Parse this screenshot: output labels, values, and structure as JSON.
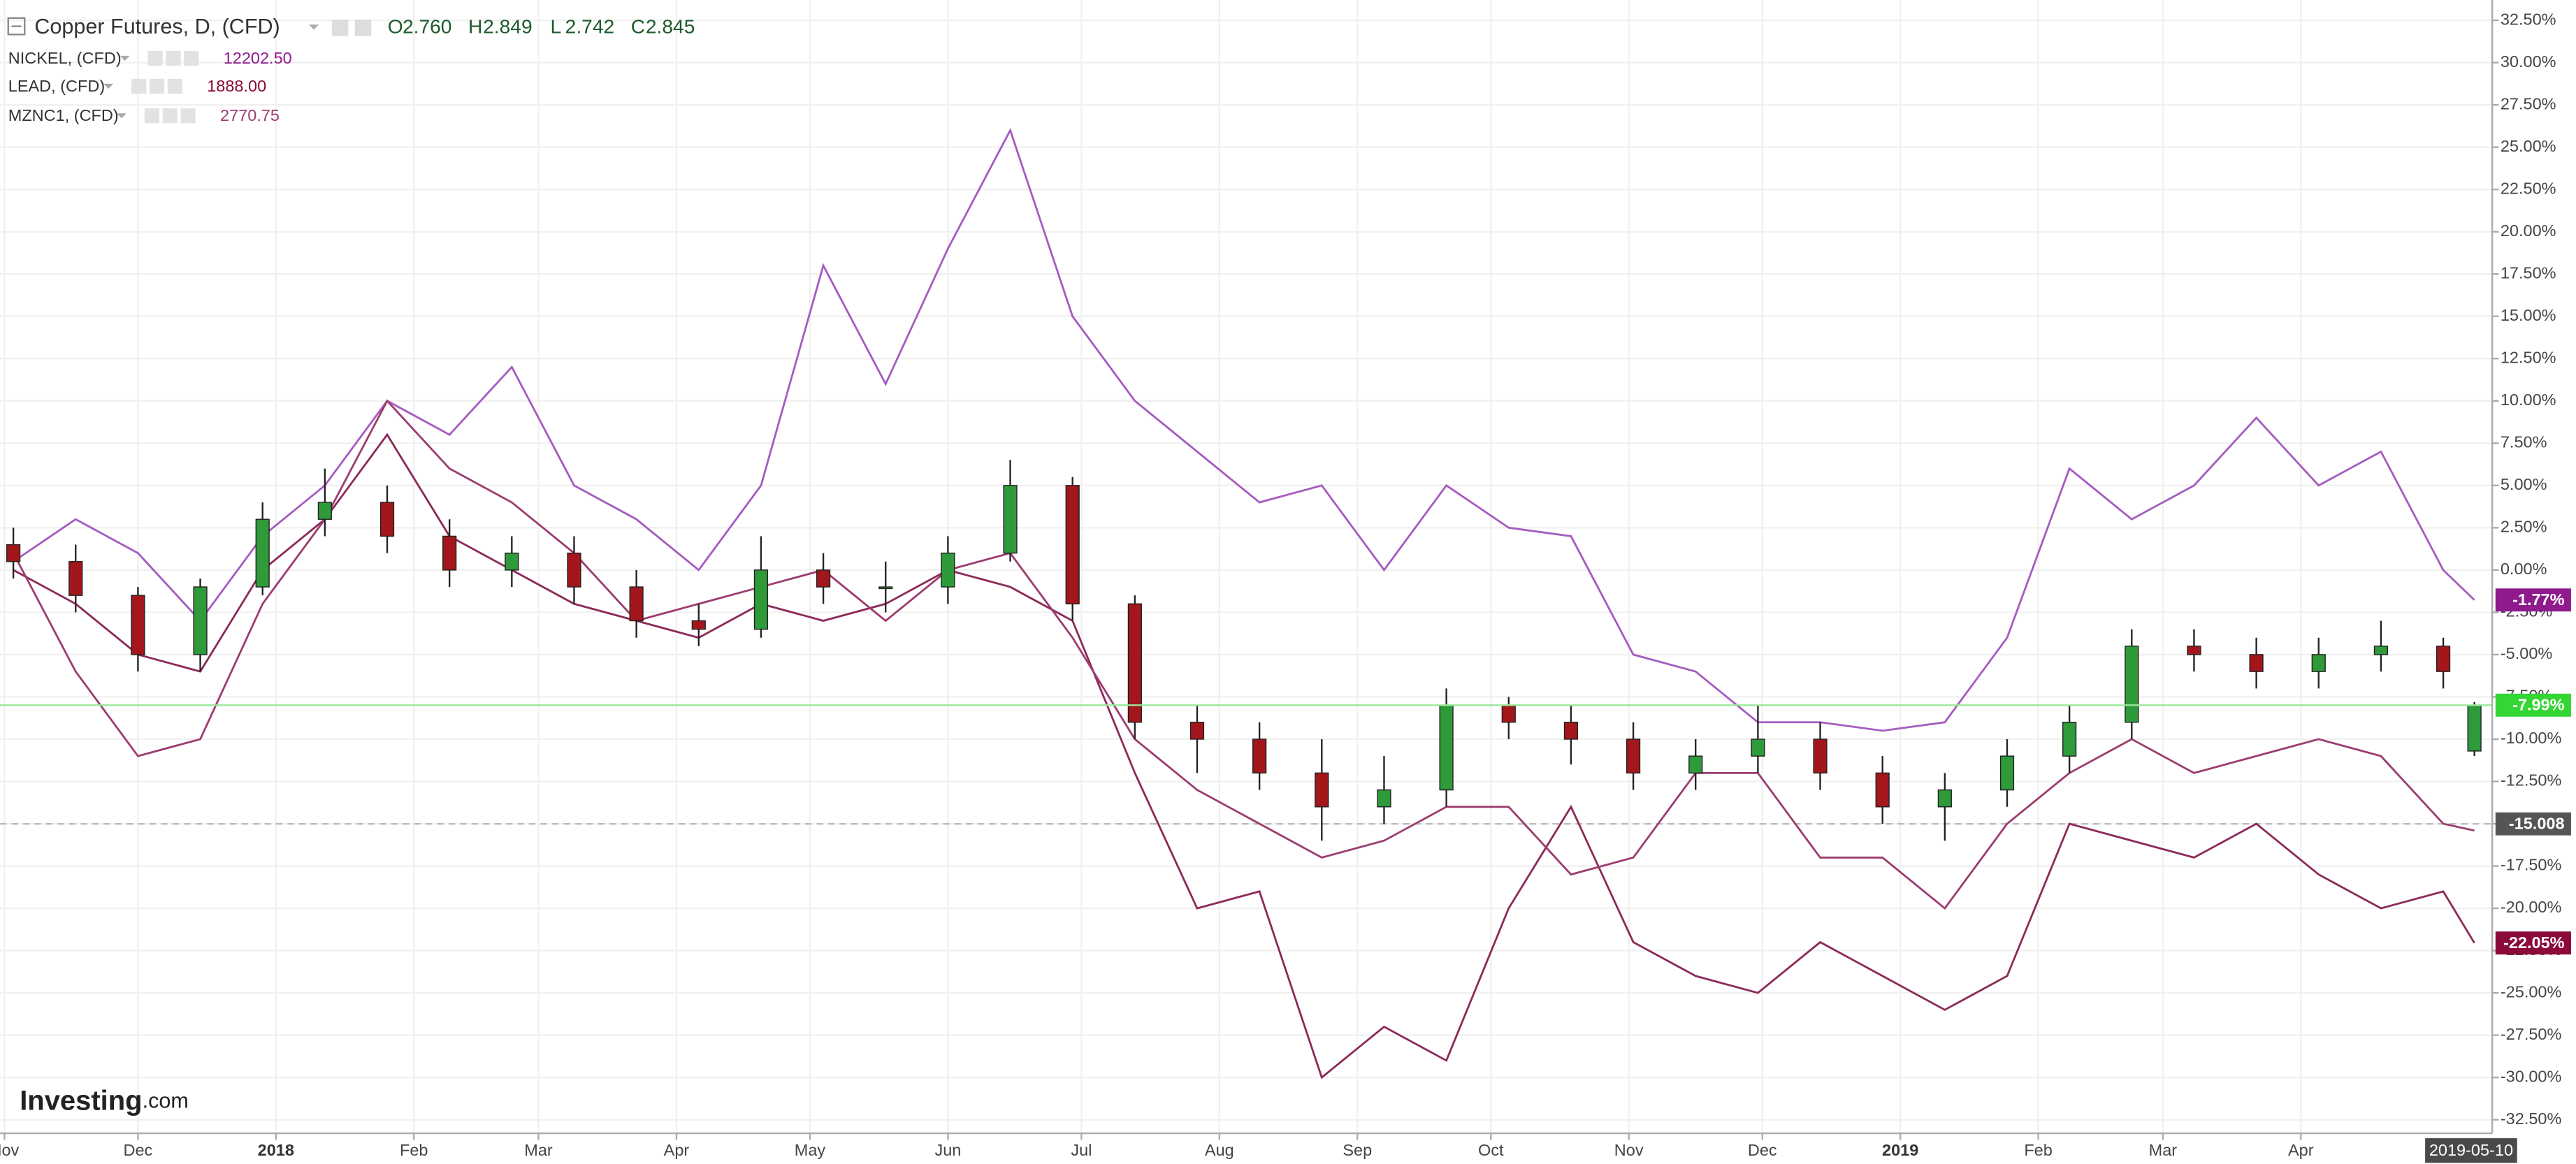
{
  "chart_data": {
    "type": "candlestick",
    "title": "Copper Futures, D, (CFD)",
    "ohlc_header": [
      {
        "key": "O",
        "value": "2.760"
      },
      {
        "key": "H",
        "value": "2.849"
      },
      {
        "key": "L",
        "value": "2.742"
      },
      {
        "key": "C",
        "value": "2.845"
      }
    ],
    "x": [
      "2017-11-03",
      "2017-11-17",
      "2017-12-01",
      "2017-12-15",
      "2017-12-29",
      "2018-01-12",
      "2018-01-26",
      "2018-02-09",
      "2018-02-23",
      "2018-03-09",
      "2018-03-23",
      "2018-04-06",
      "2018-04-20",
      "2018-05-04",
      "2018-05-18",
      "2018-06-01",
      "2018-06-15",
      "2018-06-29",
      "2018-07-13",
      "2018-07-27",
      "2018-08-10",
      "2018-08-24",
      "2018-09-07",
      "2018-09-21",
      "2018-10-05",
      "2018-10-19",
      "2018-11-02",
      "2018-11-16",
      "2018-11-30",
      "2018-12-14",
      "2018-12-28",
      "2019-01-11",
      "2019-01-25",
      "2019-02-08",
      "2019-02-22",
      "2019-03-08",
      "2019-03-22",
      "2019-04-05",
      "2019-04-19",
      "2019-05-03",
      "2019-05-10"
    ],
    "open": [
      1.5,
      0.5,
      -1.5,
      -5,
      -1,
      3,
      4,
      2,
      0,
      1,
      -1,
      -3,
      -3.5,
      0,
      -1,
      -1,
      1,
      5,
      -2,
      -9,
      -10,
      -12,
      -14,
      -13,
      -8,
      -9,
      -10,
      -12,
      -11,
      -10,
      -12,
      -14,
      -13,
      -11,
      -9,
      -4.5,
      -5,
      -6,
      -5,
      -4.5,
      -10.7
    ],
    "high": [
      2.5,
      1.5,
      -1,
      -0.5,
      4,
      6,
      5,
      3,
      2,
      2,
      0,
      -2,
      2,
      1,
      0.5,
      2,
      6.5,
      5.5,
      -1.5,
      -8,
      -9,
      -10,
      -11,
      -7,
      -7.5,
      -8,
      -9,
      -10,
      -8,
      -9,
      -11,
      -12,
      -10,
      -8,
      -3.5,
      -3.5,
      -4,
      -4,
      -3,
      -4,
      -7.8
    ],
    "low": [
      -0.5,
      -2.5,
      -6,
      -6,
      -1.5,
      2,
      1,
      -1,
      -1,
      -2,
      -4,
      -4.5,
      -4,
      -2,
      -2.5,
      -2,
      0.5,
      -3,
      -10,
      -12,
      -13,
      -16,
      -15,
      -14,
      -10,
      -11.5,
      -13,
      -13,
      -12,
      -13,
      -15,
      -16,
      -14,
      -12,
      -10,
      -6,
      -7,
      -7,
      -6,
      -7,
      -11
    ],
    "close": [
      0.5,
      -1.5,
      -5,
      -1,
      3,
      4,
      2,
      0,
      1,
      -1,
      -3,
      -3.5,
      0,
      -1,
      -1,
      1,
      5,
      -2,
      -9,
      -10,
      -12,
      -14,
      -13,
      -8,
      -9,
      -10,
      -12,
      -11,
      -10,
      -12,
      -14,
      -13,
      -11,
      -9,
      -4.5,
      -5,
      -6,
      -5,
      -4.5,
      -6,
      -7.99
    ],
    "up_color": "#2e9a3a",
    "down_color": "#a3161c",
    "last_label": "-7.99%",
    "last_color": "#33d633",
    "series": [
      {
        "name": "NICKEL, (CFD)",
        "last_price": "12202.50",
        "color": "#a55cc0",
        "label_color": "#8e1a8e",
        "last_label": "-1.77%",
        "values": [
          0.5,
          3,
          1,
          -3,
          2,
          5,
          10,
          8,
          12,
          5,
          3,
          0,
          5,
          18,
          11,
          19,
          26,
          15,
          10,
          7,
          4,
          5,
          0,
          5,
          2.5,
          2,
          -5,
          -6,
          -9,
          -9,
          -9.5,
          -9,
          -4,
          6,
          3,
          5,
          9,
          5,
          7,
          0,
          -1.77
        ]
      },
      {
        "name": "LEAD, (CFD)",
        "last_price": "1888.00",
        "color": "#8c2a5a",
        "label_color": "#8b0a3a",
        "last_label": "-22.05%",
        "values": [
          0,
          -2,
          -5,
          -6,
          0,
          3,
          8,
          2,
          0,
          -2,
          -3,
          -4,
          -2,
          -3,
          -2,
          0,
          -1,
          -3,
          -12,
          -20,
          -19,
          -30,
          -27,
          -29,
          -20,
          -14,
          -22,
          -24,
          -25,
          -22,
          -24,
          -26,
          -24,
          -15,
          -16,
          -17,
          -15,
          -18,
          -20,
          -19,
          -22.05
        ]
      },
      {
        "name": "MZNC1, (CFD)",
        "last_price": "2770.75",
        "color": "#9c3d70",
        "label_color": "#9c3d70",
        "values": [
          1,
          -6,
          -11,
          -10,
          -2,
          3,
          10,
          6,
          4,
          1,
          -3,
          -2,
          -1,
          0,
          -3,
          0,
          1,
          -4,
          -10,
          -13,
          -15,
          -17,
          -16,
          -14,
          -14,
          -18,
          -17,
          -12,
          -12,
          -17,
          -17,
          -20,
          -15,
          -12,
          -10,
          -12,
          -11,
          -10,
          -11,
          -15,
          -15.4
        ]
      }
    ],
    "hline": -15.008,
    "xlim": [
      "2017-10-31",
      "2019-05-14"
    ],
    "xticks": [
      {
        "value": "2017-11-01",
        "label": "Nov"
      },
      {
        "value": "2017-12-01",
        "label": "Dec"
      },
      {
        "value": "2018-01-01",
        "label": "2018"
      },
      {
        "value": "2018-02-01",
        "label": "Feb"
      },
      {
        "value": "2018-03-01",
        "label": "Mar"
      },
      {
        "value": "2018-04-01",
        "label": "Apr"
      },
      {
        "value": "2018-05-01",
        "label": "May"
      },
      {
        "value": "2018-06-01",
        "label": "Jun"
      },
      {
        "value": "2018-07-01",
        "label": "Jul"
      },
      {
        "value": "2018-08-01",
        "label": "Aug"
      },
      {
        "value": "2018-09-01",
        "label": "Sep"
      },
      {
        "value": "2018-10-01",
        "label": "Oct"
      },
      {
        "value": "2018-11-01",
        "label": "Nov"
      },
      {
        "value": "2018-12-01",
        "label": "Dec"
      },
      {
        "value": "2019-01-01",
        "label": "2019"
      },
      {
        "value": "2019-02-01",
        "label": "Feb"
      },
      {
        "value": "2019-03-01",
        "label": "Mar"
      },
      {
        "value": "2019-04-01",
        "label": "Apr"
      }
    ],
    "ylim": [
      -33.3,
      33.7
    ],
    "yticks": [
      {
        "value": -32.5,
        "label": "-32.50%"
      },
      {
        "value": -30,
        "label": "-30.00%"
      },
      {
        "value": -27.5,
        "label": "-27.50%"
      },
      {
        "value": -25,
        "label": "-25.00%"
      },
      {
        "value": -22.5,
        "label": "-22.50%"
      },
      {
        "value": -20,
        "label": "-20.00%"
      },
      {
        "value": -17.5,
        "label": "-17.50%"
      },
      {
        "value": -15,
        "label": "-15.00%"
      },
      {
        "value": -12.5,
        "label": "-12.50%"
      },
      {
        "value": -10,
        "label": "-10.00%"
      },
      {
        "value": -7.5,
        "label": "-7.50%"
      },
      {
        "value": -5,
        "label": "-5.00%"
      },
      {
        "value": -2.5,
        "label": "-2.50%"
      },
      {
        "value": 0,
        "label": "0.00%"
      },
      {
        "value": 2.5,
        "label": "2.50%"
      },
      {
        "value": 5,
        "label": "5.00%"
      },
      {
        "value": 7.5,
        "label": "7.50%"
      },
      {
        "value": 10,
        "label": "10.00%"
      },
      {
        "value": 12.5,
        "label": "12.50%"
      },
      {
        "value": 15,
        "label": "15.00%"
      },
      {
        "value": 17.5,
        "label": "17.50%"
      },
      {
        "value": 20,
        "label": "20.00%"
      },
      {
        "value": 22.5,
        "label": "22.50%"
      },
      {
        "value": 25,
        "label": "25.00%"
      },
      {
        "value": 27.5,
        "label": "27.50%"
      },
      {
        "value": 30,
        "label": "30.00%"
      },
      {
        "value": 32.5,
        "label": "32.50%"
      }
    ],
    "grid": true,
    "watermark": [
      "Investing",
      ".com"
    ]
  }
}
